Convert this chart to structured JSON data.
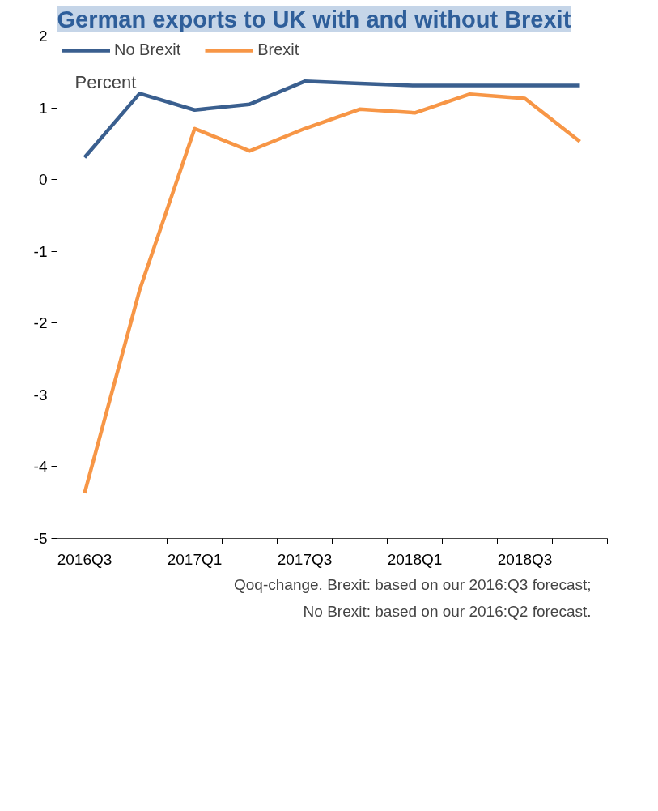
{
  "chart_data": {
    "type": "line",
    "title": "German exports to UK with and without Brexit",
    "ylabel": "Percent",
    "categories": [
      "2016Q3",
      null,
      "2017Q1",
      null,
      "2017Q3",
      null,
      "2018Q1",
      null,
      "2018Q3",
      null
    ],
    "series": [
      {
        "name": "No Brexit",
        "color": "#3a5f8f",
        "values": [
          0.31,
          1.2,
          0.97,
          1.05,
          1.37,
          1.34,
          1.31,
          1.31,
          1.31,
          1.31
        ]
      },
      {
        "name": "Brexit",
        "color": "#f79646",
        "values": [
          -4.37,
          -1.54,
          0.71,
          0.4,
          0.71,
          0.98,
          0.93,
          1.19,
          1.13,
          0.53
        ]
      }
    ],
    "ylim": [
      -5,
      2
    ],
    "yticks": [
      -5,
      -4,
      -3,
      -2,
      -1,
      0,
      1,
      2
    ],
    "grid": false,
    "legend": "top left",
    "marker": "none",
    "line_style": "solid",
    "annotations": [
      "Qoq-change. Brexit: based on our 2016:Q3 forecast;",
      "No Brexit: based on our 2016:Q2 forecast."
    ]
  }
}
